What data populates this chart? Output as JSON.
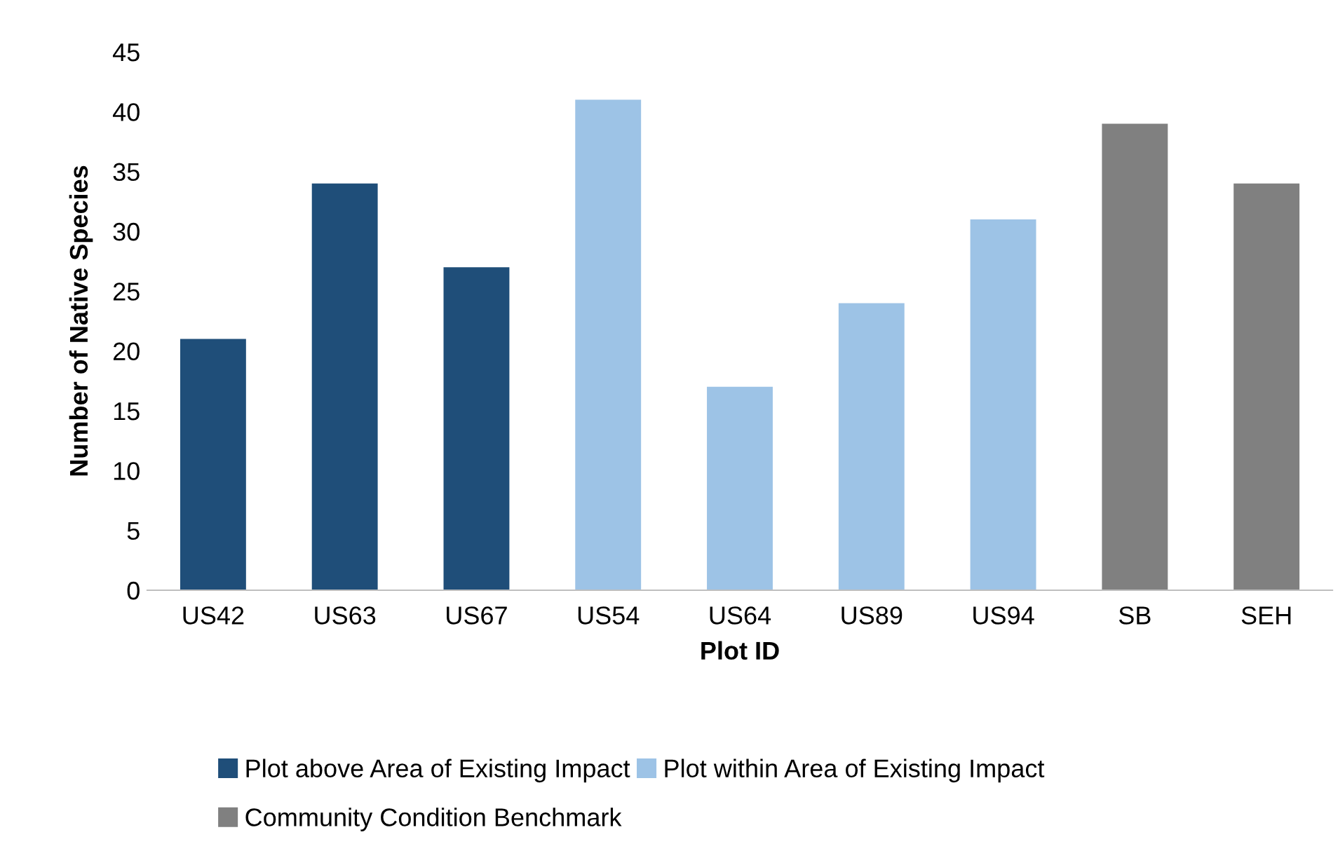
{
  "chart_data": {
    "type": "bar",
    "stacked": true,
    "xlabel": "Plot ID",
    "ylabel": "Number of Native Species",
    "categories": [
      "US42",
      "US63",
      "US67",
      "US54",
      "US64",
      "US89",
      "US94",
      "SB",
      "SEH"
    ],
    "series": [
      {
        "name": "Plot above Area of Existing Impact",
        "color": "#1f4e79",
        "values": [
          21,
          34,
          27,
          null,
          null,
          null,
          null,
          null,
          null
        ]
      },
      {
        "name": "Plot within Area of Existing Impact",
        "color": "#9dc3e6",
        "values": [
          null,
          null,
          null,
          41,
          17,
          24,
          31,
          null,
          null
        ]
      },
      {
        "name": "Community Condition Benchmark",
        "color": "#808080",
        "values": [
          null,
          null,
          null,
          null,
          null,
          null,
          null,
          39,
          34
        ]
      }
    ],
    "ylim": [
      0,
      45
    ],
    "yticks": [
      0,
      5,
      10,
      15,
      20,
      25,
      30,
      35,
      40,
      45
    ],
    "grid": false,
    "legend": "bottom"
  }
}
